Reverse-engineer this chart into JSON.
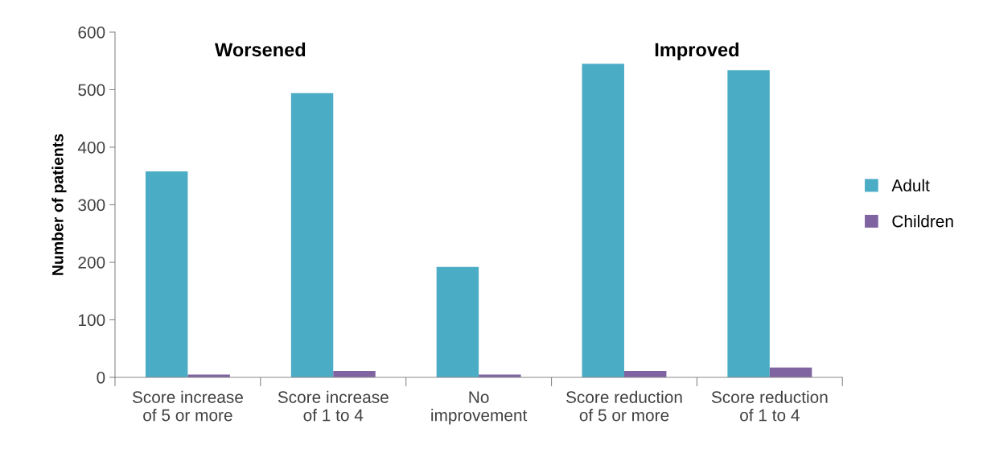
{
  "chart_data": {
    "type": "bar",
    "ylabel": "Number of patients",
    "categories": [
      "Score increase\nof 5 or more",
      "Score increase\nof 1 to 4",
      "No\nimprovement",
      "Score reduction\nof 5 or more",
      "Score reduction\nof 1 to 4"
    ],
    "series": [
      {
        "name": "Adult",
        "color": "#4bacc6",
        "values": [
          358,
          494,
          192,
          545,
          534
        ]
      },
      {
        "name": "Children",
        "color": "#8064a2",
        "values": [
          5,
          11,
          5,
          11,
          17
        ]
      }
    ],
    "ylim": [
      0,
      600
    ],
    "yticks": [
      0,
      100,
      200,
      300,
      400,
      500,
      600
    ],
    "annotations": [
      "Worsened",
      "Improved"
    ],
    "legend": "right",
    "grid": false
  }
}
